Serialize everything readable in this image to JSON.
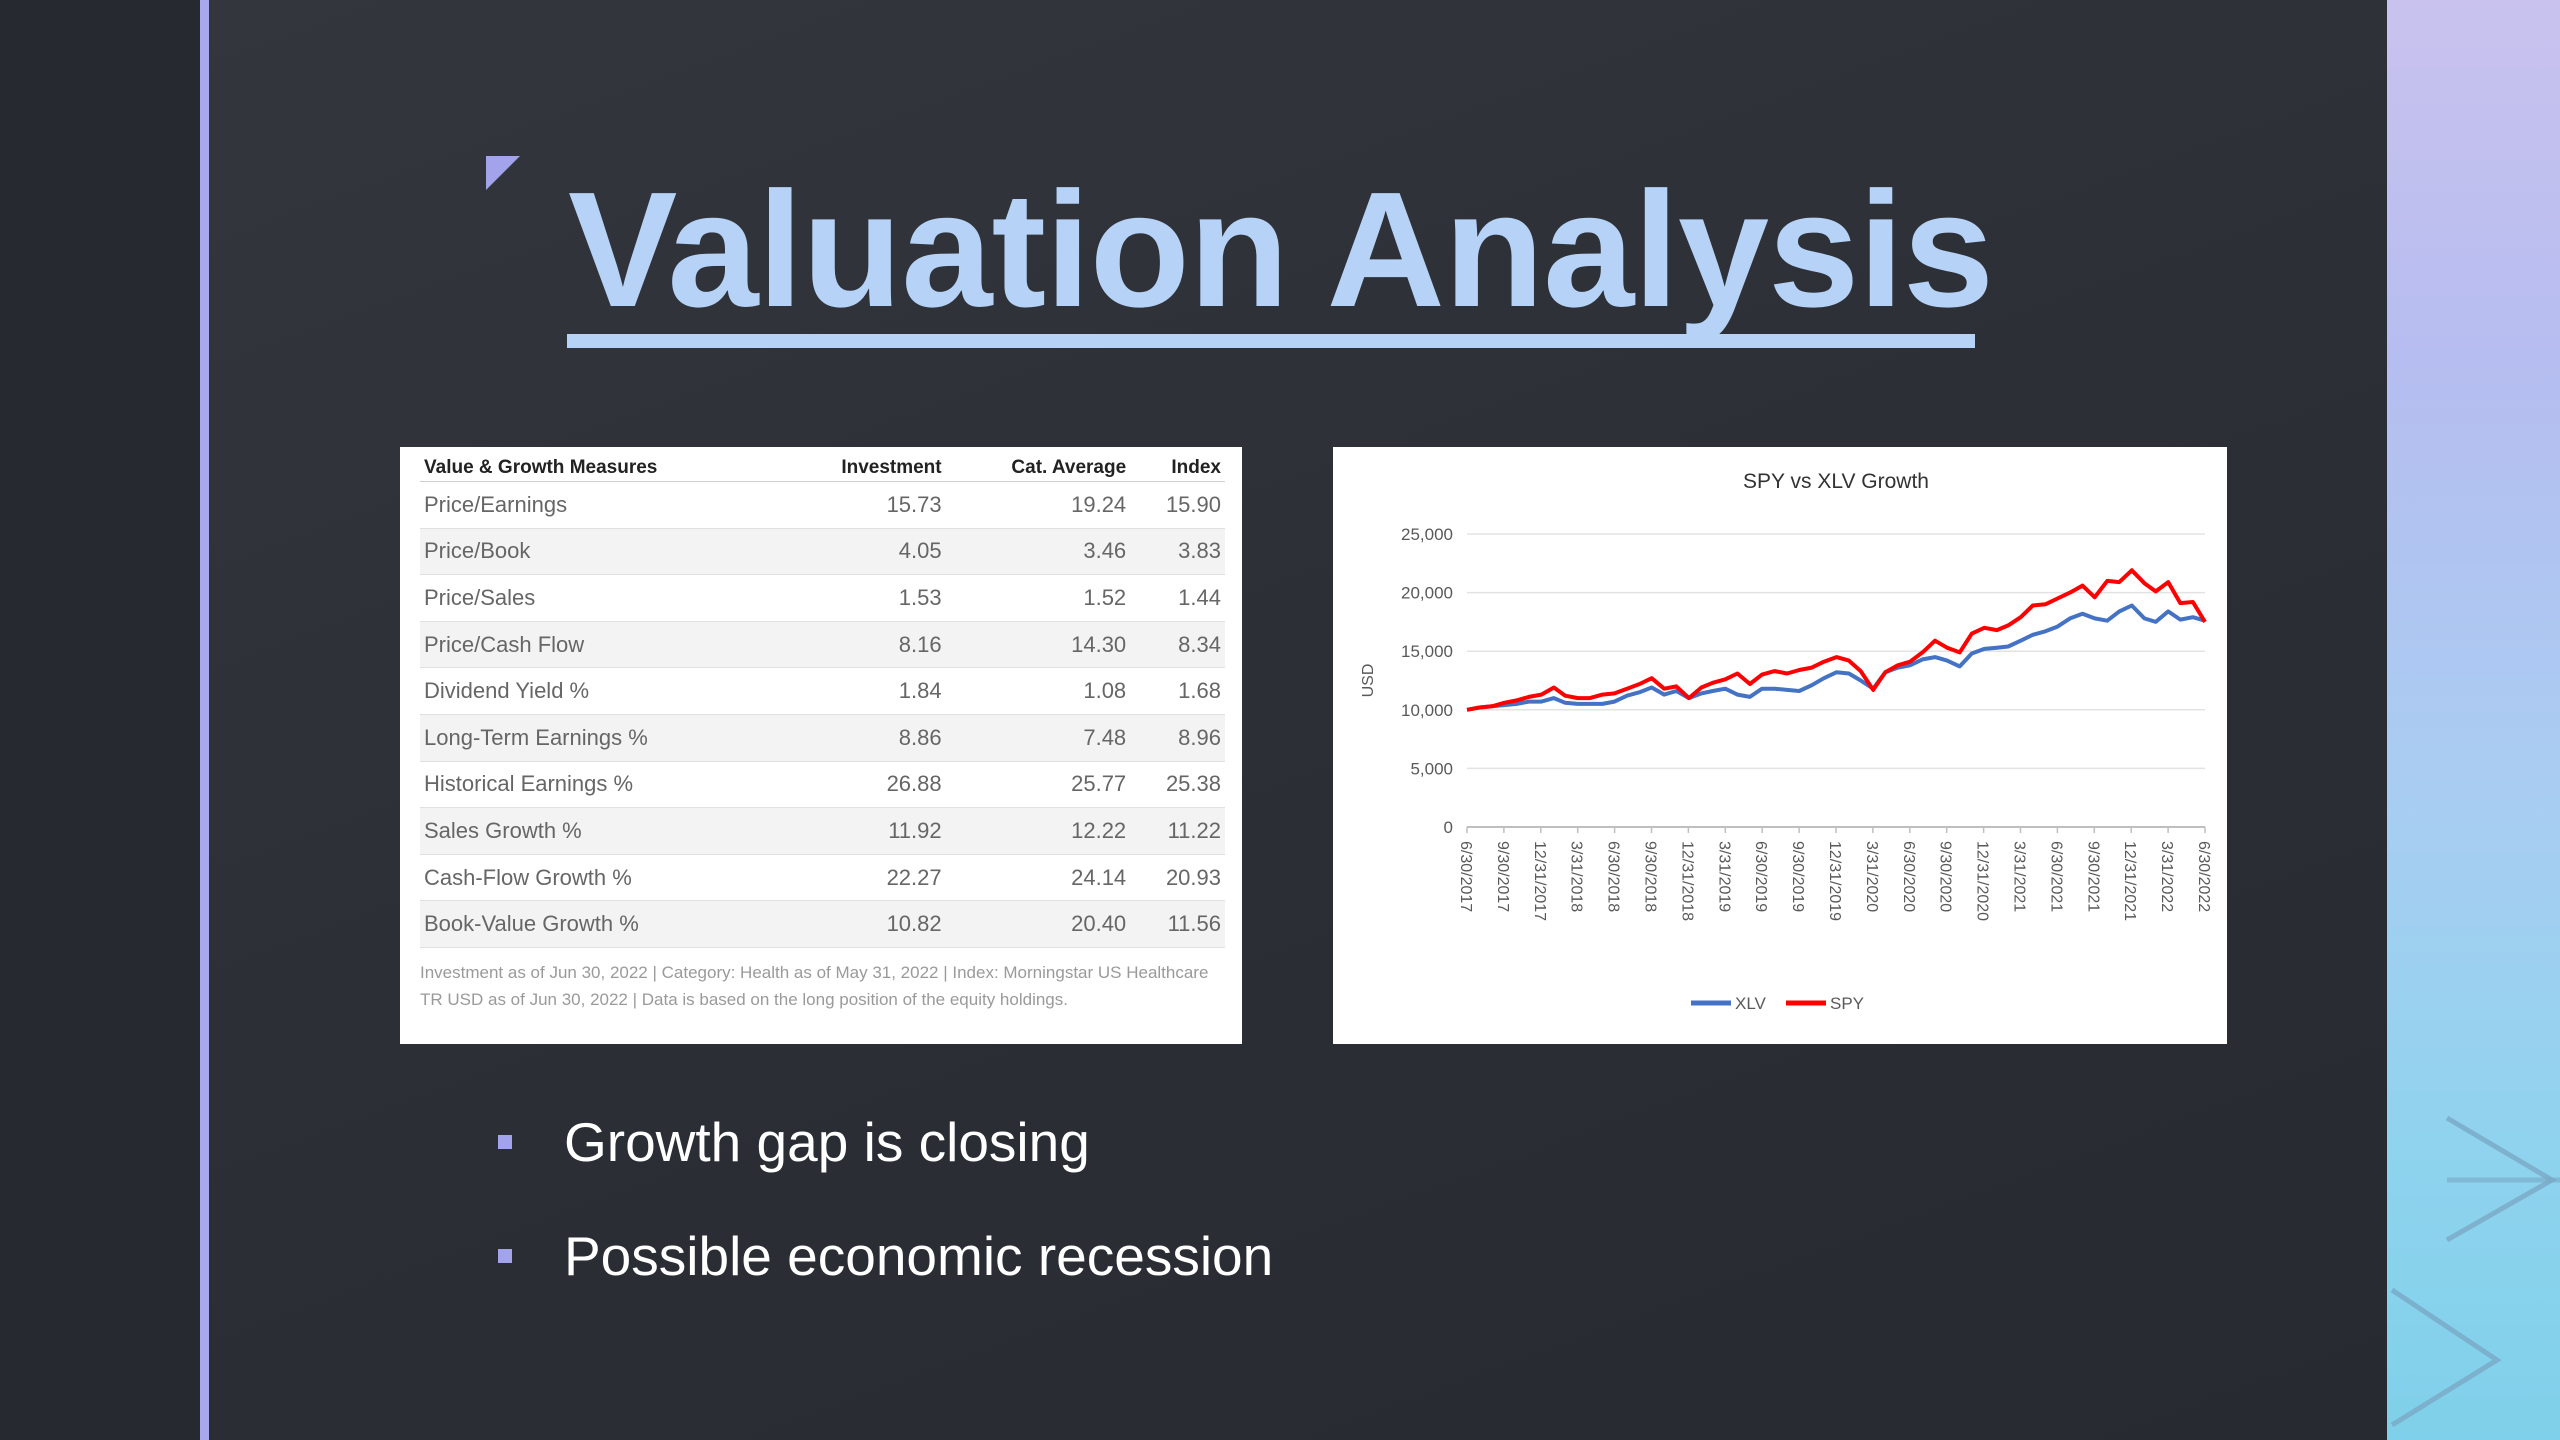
{
  "slide": {
    "title": "Valuation Analysis",
    "bullets": [
      "Growth gap is closing",
      "Possible economic recession"
    ]
  },
  "table": {
    "headers": [
      "Value & Growth Measures",
      "Investment",
      "Cat. Average",
      "Index"
    ],
    "rows": [
      [
        "Price/Earnings",
        "15.73",
        "19.24",
        "15.90"
      ],
      [
        "Price/Book",
        "4.05",
        "3.46",
        "3.83"
      ],
      [
        "Price/Sales",
        "1.53",
        "1.52",
        "1.44"
      ],
      [
        "Price/Cash Flow",
        "8.16",
        "14.30",
        "8.34"
      ],
      [
        "Dividend Yield %",
        "1.84",
        "1.08",
        "1.68"
      ],
      [
        "Long-Term Earnings %",
        "8.86",
        "7.48",
        "8.96"
      ],
      [
        "Historical Earnings %",
        "26.88",
        "25.77",
        "25.38"
      ],
      [
        "Sales Growth %",
        "11.92",
        "12.22",
        "11.22"
      ],
      [
        "Cash-Flow Growth %",
        "22.27",
        "24.14",
        "20.93"
      ],
      [
        "Book-Value Growth %",
        "10.82",
        "20.40",
        "11.56"
      ]
    ],
    "footnote": "Investment as of Jun 30, 2022 | Category: Health as of May 31, 2022 | Index: Morningstar US Healthcare TR USD as of Jun 30, 2022 | Data is based on the long position of the equity holdings."
  },
  "colors": {
    "accent": "#a3a3ec",
    "title": "#b6d2f6",
    "xlv": "#4472c4",
    "spy": "#ff0000"
  },
  "chart_data": {
    "type": "line",
    "title": "SPY vs XLV Growth",
    "xlabel": "",
    "ylabel": "USD",
    "ylim": [
      0,
      25000
    ],
    "yticks": [
      0,
      5000,
      10000,
      15000,
      20000,
      25000
    ],
    "ytick_labels": [
      "0",
      "5,000",
      "10,000",
      "15,000",
      "20,000",
      "25,000"
    ],
    "grid": true,
    "legend": "bottom",
    "x_tick_labels": [
      "6/30/2017",
      "9/30/2017",
      "12/31/2017",
      "3/31/2018",
      "6/30/2018",
      "9/30/2018",
      "12/31/2018",
      "3/31/2019",
      "6/30/2019",
      "9/30/2019",
      "12/31/2019",
      "3/31/2020",
      "6/30/2020",
      "9/30/2020",
      "12/31/2020",
      "3/31/2021",
      "6/30/2021",
      "9/30/2021",
      "12/31/2021",
      "3/31/2022",
      "6/30/2022"
    ],
    "x": [
      "2017-06-30",
      "2017-07-31",
      "2017-08-31",
      "2017-09-30",
      "2017-10-31",
      "2017-11-30",
      "2017-12-31",
      "2018-01-31",
      "2018-02-28",
      "2018-03-31",
      "2018-04-30",
      "2018-05-31",
      "2018-06-30",
      "2018-07-31",
      "2018-08-31",
      "2018-09-30",
      "2018-10-31",
      "2018-11-30",
      "2018-12-31",
      "2019-01-31",
      "2019-02-28",
      "2019-03-31",
      "2019-04-30",
      "2019-05-31",
      "2019-06-30",
      "2019-07-31",
      "2019-08-31",
      "2019-09-30",
      "2019-10-31",
      "2019-11-30",
      "2019-12-31",
      "2020-01-31",
      "2020-02-29",
      "2020-03-31",
      "2020-04-30",
      "2020-05-31",
      "2020-06-30",
      "2020-07-31",
      "2020-08-31",
      "2020-09-30",
      "2020-10-31",
      "2020-11-30",
      "2020-12-31",
      "2021-01-31",
      "2021-02-28",
      "2021-03-31",
      "2021-04-30",
      "2021-05-31",
      "2021-06-30",
      "2021-07-31",
      "2021-08-31",
      "2021-09-30",
      "2021-10-31",
      "2021-11-30",
      "2021-12-31",
      "2022-01-31",
      "2022-02-28",
      "2022-03-31",
      "2022-04-30",
      "2022-05-31",
      "2022-06-30"
    ],
    "series": [
      {
        "name": "XLV",
        "values": [
          10000,
          10200,
          10300,
          10400,
          10500,
          10700,
          10700,
          11000,
          10600,
          10500,
          10500,
          10500,
          10700,
          11200,
          11500,
          11900,
          11300,
          11600,
          11000,
          11400,
          11600,
          11800,
          11300,
          11100,
          11800,
          11800,
          11700,
          11600,
          12100,
          12700,
          13200,
          13100,
          12500,
          11800,
          13200,
          13600,
          13800,
          14300,
          14500,
          14200,
          13700,
          14800,
          15200,
          15300,
          15400,
          15900,
          16400,
          16700,
          17100,
          17800,
          18200,
          17800,
          17600,
          18400,
          18900,
          17800,
          17500,
          18400,
          17700,
          17900,
          17600
        ]
      },
      {
        "name": "SPY",
        "values": [
          10000,
          10200,
          10300,
          10600,
          10800,
          11100,
          11300,
          11900,
          11200,
          11000,
          11000,
          11300,
          11400,
          11800,
          12200,
          12700,
          11800,
          12000,
          11000,
          11900,
          12300,
          12600,
          13100,
          12200,
          13000,
          13300,
          13100,
          13400,
          13600,
          14100,
          14500,
          14200,
          13300,
          11700,
          13200,
          13800,
          14100,
          14900,
          15900,
          15300,
          14900,
          16500,
          17000,
          16800,
          17200,
          17900,
          18900,
          19000,
          19500,
          20000,
          20600,
          19600,
          21000,
          20900,
          21900,
          20800,
          20100,
          20900,
          19100,
          19200,
          17500
        ]
      }
    ]
  }
}
